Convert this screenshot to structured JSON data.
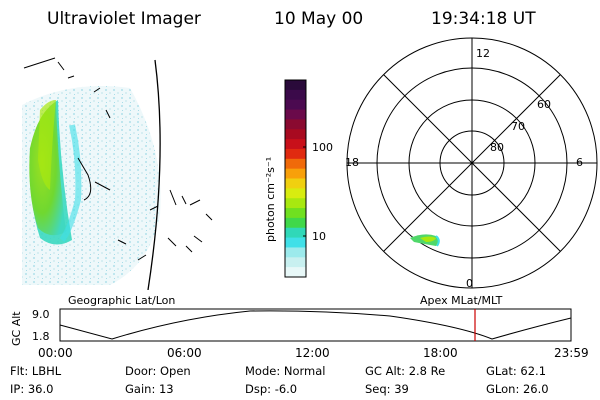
{
  "header": {
    "instrument": "Ultraviolet Imager",
    "date": "10 May 00",
    "time": "19:34:18 UT"
  },
  "colorbar": {
    "unit_label": "photon cm⁻²s⁻¹",
    "ticks": [
      "100",
      "10"
    ],
    "colors": [
      "#2a0a3a",
      "#3b0a4a",
      "#4b0a50",
      "#6a0a4a",
      "#8a0a30",
      "#a80a20",
      "#c8101a",
      "#e02a10",
      "#f06a0a",
      "#f8a00a",
      "#f0d010",
      "#d8ec10",
      "#a8e810",
      "#70e020",
      "#40d84a",
      "#30d8b8",
      "#40e0e8",
      "#9ceaec",
      "#c8f0f0",
      "#e8f8f8"
    ]
  },
  "polar": {
    "mlt_labels": [
      "12",
      "18",
      "6",
      "0"
    ],
    "lat_labels": [
      "60",
      "70",
      "80"
    ]
  },
  "altitude_plot": {
    "left_title": "Geographic Lat/Lon",
    "right_title": "Apex MLat/MLT",
    "ylabel": "GC Alt",
    "y_top": "9.0",
    "y_bottom": "1.8",
    "time_ticks": [
      "00:00",
      "06:00",
      "12:00",
      "18:00",
      "23:59"
    ],
    "marker_color": "#cc0000"
  },
  "status": {
    "row1": [
      {
        "label": "Flt:",
        "value": "LBHL"
      },
      {
        "label": "Door:",
        "value": "Open"
      },
      {
        "label": "Mode:",
        "value": "Normal"
      },
      {
        "label": "GC Alt:",
        "value": "2.8 Re"
      },
      {
        "label": "GLat:",
        "value": "62.1"
      }
    ],
    "row2": [
      {
        "label": "IP:",
        "value": "36.0"
      },
      {
        "label": "Gain:",
        "value": "13"
      },
      {
        "label": "Dsp:",
        "value": "-6.0"
      },
      {
        "label": "Seq:",
        "value": "39"
      },
      {
        "label": "GLon:",
        "value": "26.0"
      }
    ]
  }
}
